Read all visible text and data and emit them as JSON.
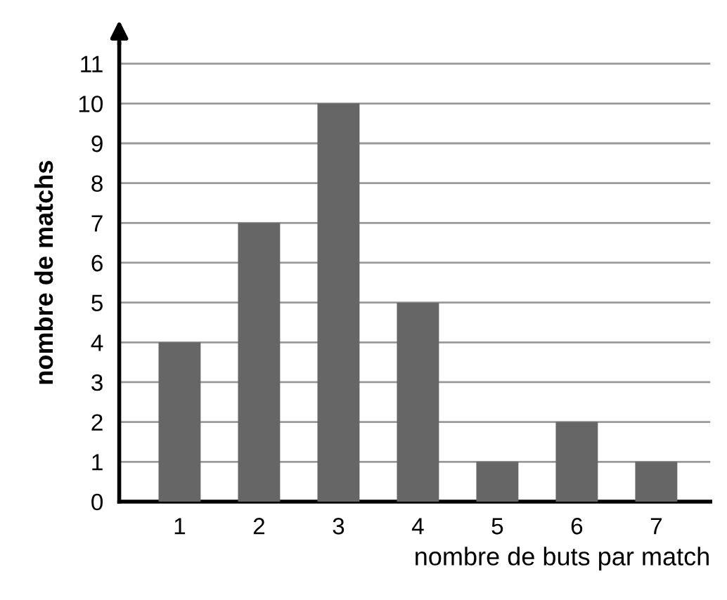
{
  "chart_data": {
    "type": "bar",
    "xlabel": "nombre de buts par match",
    "ylabel": "nombre de matchs",
    "categories": [
      "1",
      "2",
      "3",
      "4",
      "5",
      "6",
      "7"
    ],
    "values": [
      4,
      7,
      10,
      5,
      1,
      2,
      1
    ],
    "color": "#666666",
    "ylim": [
      0,
      11.5
    ],
    "yticks": [
      0,
      1,
      2,
      3,
      4,
      5,
      6,
      7,
      8,
      9,
      10,
      11
    ],
    "grid": "y",
    "legend": false
  }
}
